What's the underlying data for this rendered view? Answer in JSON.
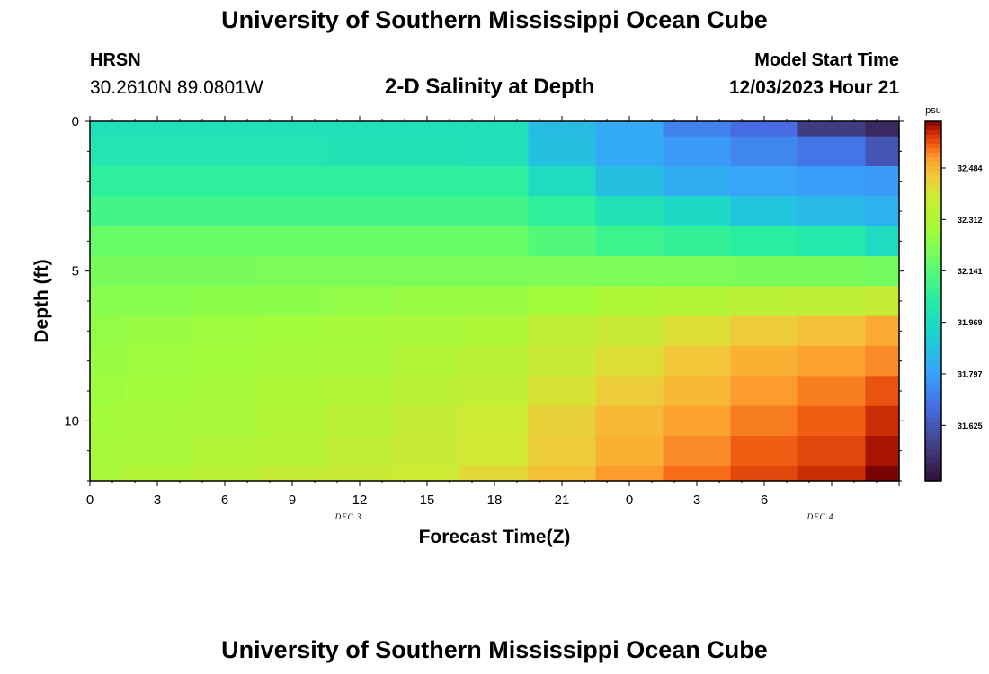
{
  "header": {
    "title": "University of Southern Mississippi Ocean Cube",
    "station": "HRSN",
    "coords": "30.2610N  89.0801W",
    "subtitle": "2-D Salinity at Depth",
    "model_start_label": "Model Start Time",
    "model_start_value": "12/03/2023 Hour 21"
  },
  "footer": {
    "title": "University of Southern Mississippi Ocean Cube"
  },
  "chart_data": {
    "type": "heatmap",
    "title": "2-D Salinity at Depth",
    "xlabel": "Forecast Time(Z)",
    "ylabel": "Depth (ft)",
    "x_tick_labels": [
      "0",
      "3",
      "6",
      "9",
      "12",
      "15",
      "18",
      "21",
      "0",
      "3",
      "6"
    ],
    "x_range_hours": [
      0,
      36
    ],
    "date_labels": [
      {
        "text": "DEC 3",
        "hour": 11.5
      },
      {
        "text": "DEC 4",
        "hour": 32.5
      }
    ],
    "y_ticks": [
      0,
      5,
      10
    ],
    "y_range_ft": [
      0,
      12
    ],
    "colorbar_unit": "psu",
    "colorbar_ticks": [
      32.484,
      32.312,
      32.141,
      31.969,
      31.797,
      31.625
    ],
    "color_range": [
      31.44,
      32.64
    ],
    "columns_start_hour": [
      0,
      1.5,
      4.5,
      7.5,
      10.5,
      13.5,
      16.5,
      19.5,
      22.5,
      25.5,
      28.5,
      31.5,
      34.5
    ],
    "columns_end_hour": [
      1.5,
      4.5,
      7.5,
      10.5,
      13.5,
      16.5,
      19.5,
      22.5,
      25.5,
      28.5,
      31.5,
      34.5,
      36
    ],
    "rows_top_ft": [
      0,
      0.5,
      1.5,
      2.5,
      3.5,
      4.5,
      5.5,
      6.5,
      7.5,
      8.5,
      9.5,
      10.5,
      11.5
    ],
    "rows_bottom_ft": [
      0.5,
      1.5,
      2.5,
      3.5,
      4.5,
      5.5,
      6.5,
      7.5,
      8.5,
      9.5,
      10.5,
      11.5,
      12
    ],
    "values": [
      [
        31.99,
        31.99,
        31.99,
        31.99,
        31.99,
        31.99,
        31.99,
        31.87,
        31.82,
        31.73,
        31.68,
        31.55,
        31.5
      ],
      [
        32.01,
        32.01,
        32.01,
        32.01,
        32.0,
        32.0,
        31.99,
        31.88,
        31.82,
        31.78,
        31.74,
        31.7,
        31.62
      ],
      [
        32.06,
        32.06,
        32.06,
        32.06,
        32.06,
        32.06,
        32.06,
        31.97,
        31.88,
        31.83,
        31.81,
        31.79,
        31.78
      ],
      [
        32.1,
        32.1,
        32.1,
        32.1,
        32.1,
        32.1,
        32.1,
        32.06,
        32.0,
        31.96,
        31.89,
        31.86,
        31.84
      ],
      [
        32.17,
        32.17,
        32.17,
        32.17,
        32.17,
        32.17,
        32.17,
        32.13,
        32.09,
        32.07,
        32.05,
        32.03,
        31.97
      ],
      [
        32.2,
        32.2,
        32.2,
        32.21,
        32.21,
        32.21,
        32.21,
        32.21,
        32.21,
        32.21,
        32.2,
        32.2,
        32.19
      ],
      [
        32.23,
        32.23,
        32.24,
        32.24,
        32.25,
        32.26,
        32.26,
        32.28,
        32.31,
        32.32,
        32.34,
        32.35,
        32.37
      ],
      [
        32.25,
        32.26,
        32.27,
        32.28,
        32.29,
        32.3,
        32.31,
        32.36,
        32.38,
        32.42,
        32.45,
        32.47,
        32.5
      ],
      [
        32.26,
        32.27,
        32.28,
        32.29,
        32.3,
        32.32,
        32.34,
        32.38,
        32.42,
        32.46,
        32.49,
        32.51,
        32.53
      ],
      [
        32.27,
        32.28,
        32.29,
        32.31,
        32.32,
        32.34,
        32.36,
        32.41,
        32.45,
        32.48,
        32.52,
        32.54,
        32.57
      ],
      [
        32.28,
        32.29,
        32.3,
        32.32,
        32.34,
        32.37,
        32.39,
        32.44,
        32.48,
        32.51,
        32.54,
        32.56,
        32.6
      ],
      [
        32.29,
        32.3,
        32.32,
        32.33,
        32.36,
        32.38,
        32.4,
        32.45,
        32.49,
        32.53,
        32.56,
        32.58,
        32.62
      ],
      [
        32.3,
        32.32,
        32.34,
        32.37,
        32.38,
        32.39,
        32.43,
        32.47,
        32.52,
        32.55,
        32.58,
        32.6,
        32.65
      ]
    ]
  }
}
